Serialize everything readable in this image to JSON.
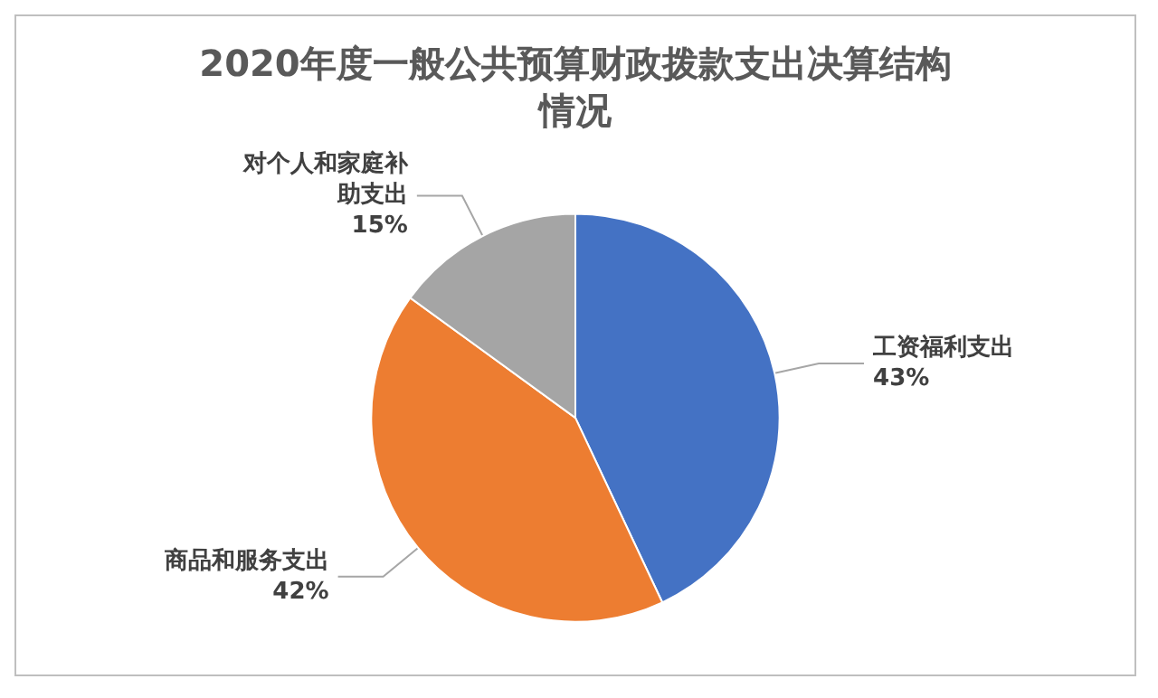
{
  "chart_data": {
    "type": "pie",
    "title": "2020年度一般公共预算财政拨款支出决算结构情况",
    "categories": [
      "工资福利支出",
      "商品和服务支出",
      "对个人和家庭补助支出"
    ],
    "values": [
      43,
      42,
      15
    ],
    "colors": [
      "#4472c4",
      "#ed7d31",
      "#a5a5a5"
    ],
    "value_labels": [
      "43%",
      "42%",
      "15%"
    ],
    "legend": false
  }
}
